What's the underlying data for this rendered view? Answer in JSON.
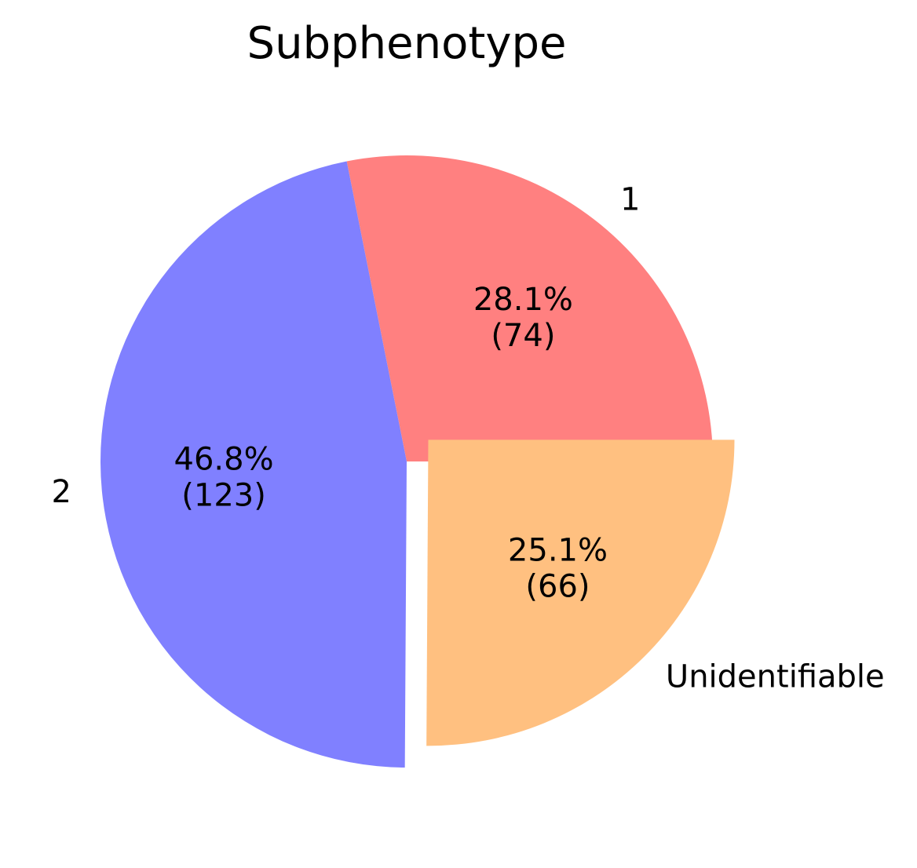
{
  "chart_data": {
    "type": "pie",
    "title": "Subphenotype",
    "slices": [
      {
        "label": "1",
        "value": 74,
        "percent": "28.1%",
        "count_text": "(74)",
        "color": "#ff8080",
        "exploded": false
      },
      {
        "label": "2",
        "value": 123,
        "percent": "46.8%",
        "count_text": "(123)",
        "color": "#8080ff",
        "exploded": false
      },
      {
        "label": "Unidentifiable",
        "value": 66,
        "percent": "25.1%",
        "count_text": "(66)",
        "color": "#ffc080",
        "exploded": true
      }
    ],
    "start_angle_deg": 0,
    "direction": "counterclockwise",
    "legend": "none"
  }
}
